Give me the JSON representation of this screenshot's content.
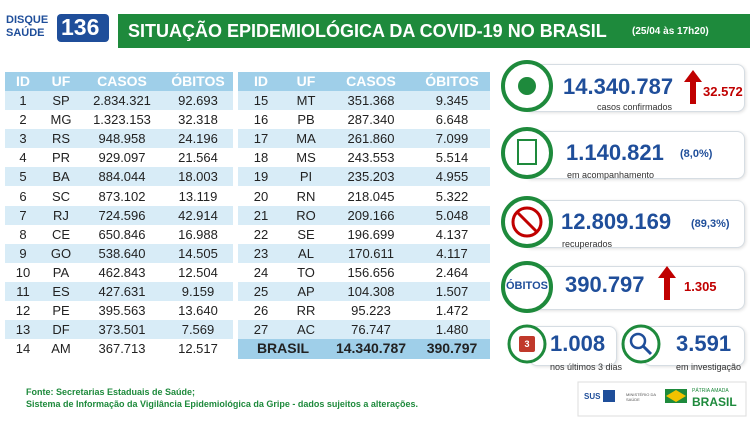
{
  "header": {
    "logo_top": "DISQUE",
    "logo_bottom": "SAÚDE",
    "logo_number": "136",
    "title": "SITUAÇÃO EPIDEMIOLÓGICA DA COVID-19 NO BRASIL",
    "timestamp": "(25/04 às 17h20)"
  },
  "tables": [
    {
      "columns": [
        "ID",
        "UF",
        "CASOS",
        "ÓBITOS"
      ],
      "rows": [
        [
          "1",
          "SP",
          "2.834.321",
          "92.693"
        ],
        [
          "2",
          "MG",
          "1.323.153",
          "32.318"
        ],
        [
          "3",
          "RS",
          "948.958",
          "24.196"
        ],
        [
          "4",
          "PR",
          "929.097",
          "21.564"
        ],
        [
          "5",
          "BA",
          "884.044",
          "18.003"
        ],
        [
          "6",
          "SC",
          "873.102",
          "13.119"
        ],
        [
          "7",
          "RJ",
          "724.596",
          "42.914"
        ],
        [
          "8",
          "CE",
          "650.846",
          "16.988"
        ],
        [
          "9",
          "GO",
          "538.640",
          "14.505"
        ],
        [
          "10",
          "PA",
          "462.843",
          "12.504"
        ],
        [
          "11",
          "ES",
          "427.631",
          "9.159"
        ],
        [
          "12",
          "PE",
          "395.563",
          "13.640"
        ],
        [
          "13",
          "DF",
          "373.501",
          "7.569"
        ],
        [
          "14",
          "AM",
          "367.713",
          "12.517"
        ]
      ]
    },
    {
      "columns": [
        "ID",
        "UF",
        "CASOS",
        "ÓBITOS"
      ],
      "rows": [
        [
          "15",
          "MT",
          "351.368",
          "9.345"
        ],
        [
          "16",
          "PB",
          "287.340",
          "6.648"
        ],
        [
          "17",
          "MA",
          "261.860",
          "7.099"
        ],
        [
          "18",
          "MS",
          "243.553",
          "5.514"
        ],
        [
          "19",
          "PI",
          "235.203",
          "4.955"
        ],
        [
          "20",
          "RN",
          "218.045",
          "5.322"
        ],
        [
          "21",
          "RO",
          "209.166",
          "5.048"
        ],
        [
          "22",
          "SE",
          "196.699",
          "4.137"
        ],
        [
          "23",
          "AL",
          "170.611",
          "4.117"
        ],
        [
          "24",
          "TO",
          "156.656",
          "2.464"
        ],
        [
          "25",
          "AP",
          "104.308",
          "1.507"
        ],
        [
          "26",
          "RR",
          "95.223",
          "1.472"
        ],
        [
          "27",
          "AC",
          "76.747",
          "1.480"
        ]
      ],
      "total": [
        "BRASIL",
        "14.340.787",
        "390.797"
      ]
    }
  ],
  "stats": {
    "confirmed": {
      "value": "14.340.787",
      "increase": "32.572",
      "label": "casos confirmados"
    },
    "monitoring": {
      "value": "1.140.821",
      "percent": "(8,0%)",
      "label": "em acompanhamento"
    },
    "recovered": {
      "value": "12.809.169",
      "percent": "(89,3%)",
      "label": "recuperados"
    },
    "deaths": {
      "badge": "ÓBITOS",
      "value": "390.797",
      "increase": "1.305"
    },
    "recent": {
      "icon": "3",
      "value": "1.008",
      "label": "nos últimos 3 dias"
    },
    "investigation": {
      "value": "3.591",
      "label": "em investigação"
    }
  },
  "footer": {
    "source_line1": "Fonte: Secretarias Estaduais de Saúde;",
    "source_line2": "Sistema de Informação da Vigilância Epidemiológica da Gripe - dados sujeitos a alterações.",
    "sus": "SUS",
    "ministry": "MINISTÉRIO DA SAÚDE",
    "motto": "PÁTRIA AMADA",
    "country": "BRASIL"
  }
}
